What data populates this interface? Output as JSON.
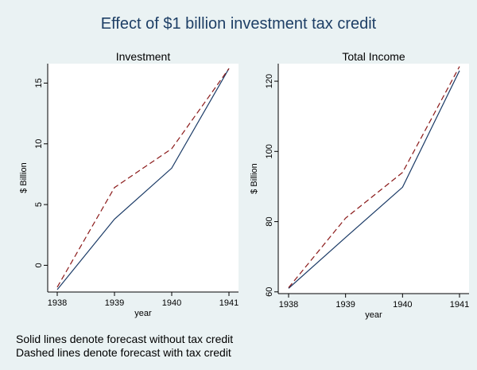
{
  "title": "Effect of $1 billion investment tax credit",
  "notes": [
    "Solid lines denote forecast without tax credit",
    "Dashed lines denote forecast with tax credit"
  ],
  "colors": {
    "background": "#eaf2f3",
    "plot_bg": "#ffffff",
    "title": "#1e3f66",
    "solid": "#1a3a66",
    "dashed": "#8b1a1a"
  },
  "chart_data": [
    {
      "type": "line",
      "title": "Investment",
      "xlabel": "year",
      "ylabel": "$ Billion",
      "x": [
        1938,
        1939,
        1940,
        1941
      ],
      "xlim": [
        1938,
        1941
      ],
      "ylim": [
        -2.2,
        16.6
      ],
      "yticks": [
        0,
        5,
        10,
        15
      ],
      "series": [
        {
          "style": "solid",
          "values": [
            -2.0,
            3.8,
            8.0,
            16.2
          ]
        },
        {
          "style": "dashed",
          "values": [
            -1.8,
            6.4,
            9.6,
            16.2
          ]
        }
      ]
    },
    {
      "type": "line",
      "title": "Total Income",
      "xlabel": "year",
      "ylabel": "$ Billion",
      "x": [
        1938,
        1939,
        1940,
        1941
      ],
      "xlim": [
        1938,
        1941
      ],
      "ylim": [
        59.5,
        125
      ],
      "yticks": [
        60,
        80,
        100,
        120
      ],
      "series": [
        {
          "style": "solid",
          "values": [
            61.0,
            75.5,
            89.8,
            123.0
          ]
        },
        {
          "style": "dashed",
          "values": [
            61.2,
            81.0,
            94.0,
            124.2
          ]
        }
      ]
    }
  ]
}
